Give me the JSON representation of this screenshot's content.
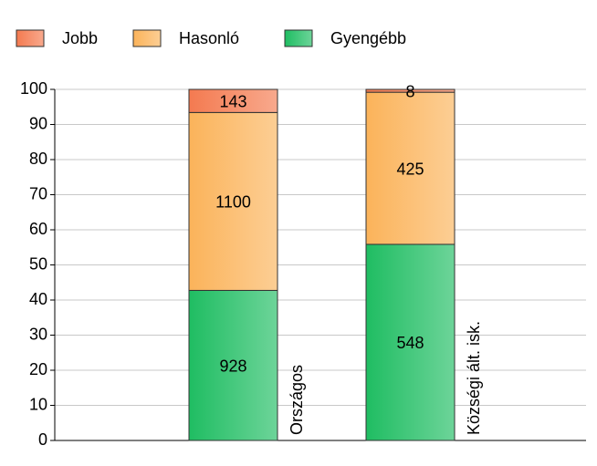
{
  "chart_data": {
    "type": "bar",
    "stacking": "percent",
    "categories": [
      "Országos",
      "Községi ált. isk."
    ],
    "series": [
      {
        "name": "Gyengébb",
        "color": "#1fbd62",
        "values": [
          928,
          548
        ]
      },
      {
        "name": "Hasonló",
        "color": "#fbb35a",
        "values": [
          1100,
          425
        ]
      },
      {
        "name": "Jobb",
        "color": "#f47a50",
        "values": [
          143,
          8
        ]
      }
    ],
    "ylim": [
      0,
      100
    ],
    "yticks": [
      0,
      10,
      20,
      30,
      40,
      50,
      60,
      70,
      80,
      90,
      100
    ],
    "grid": true,
    "legend": "top-left"
  }
}
